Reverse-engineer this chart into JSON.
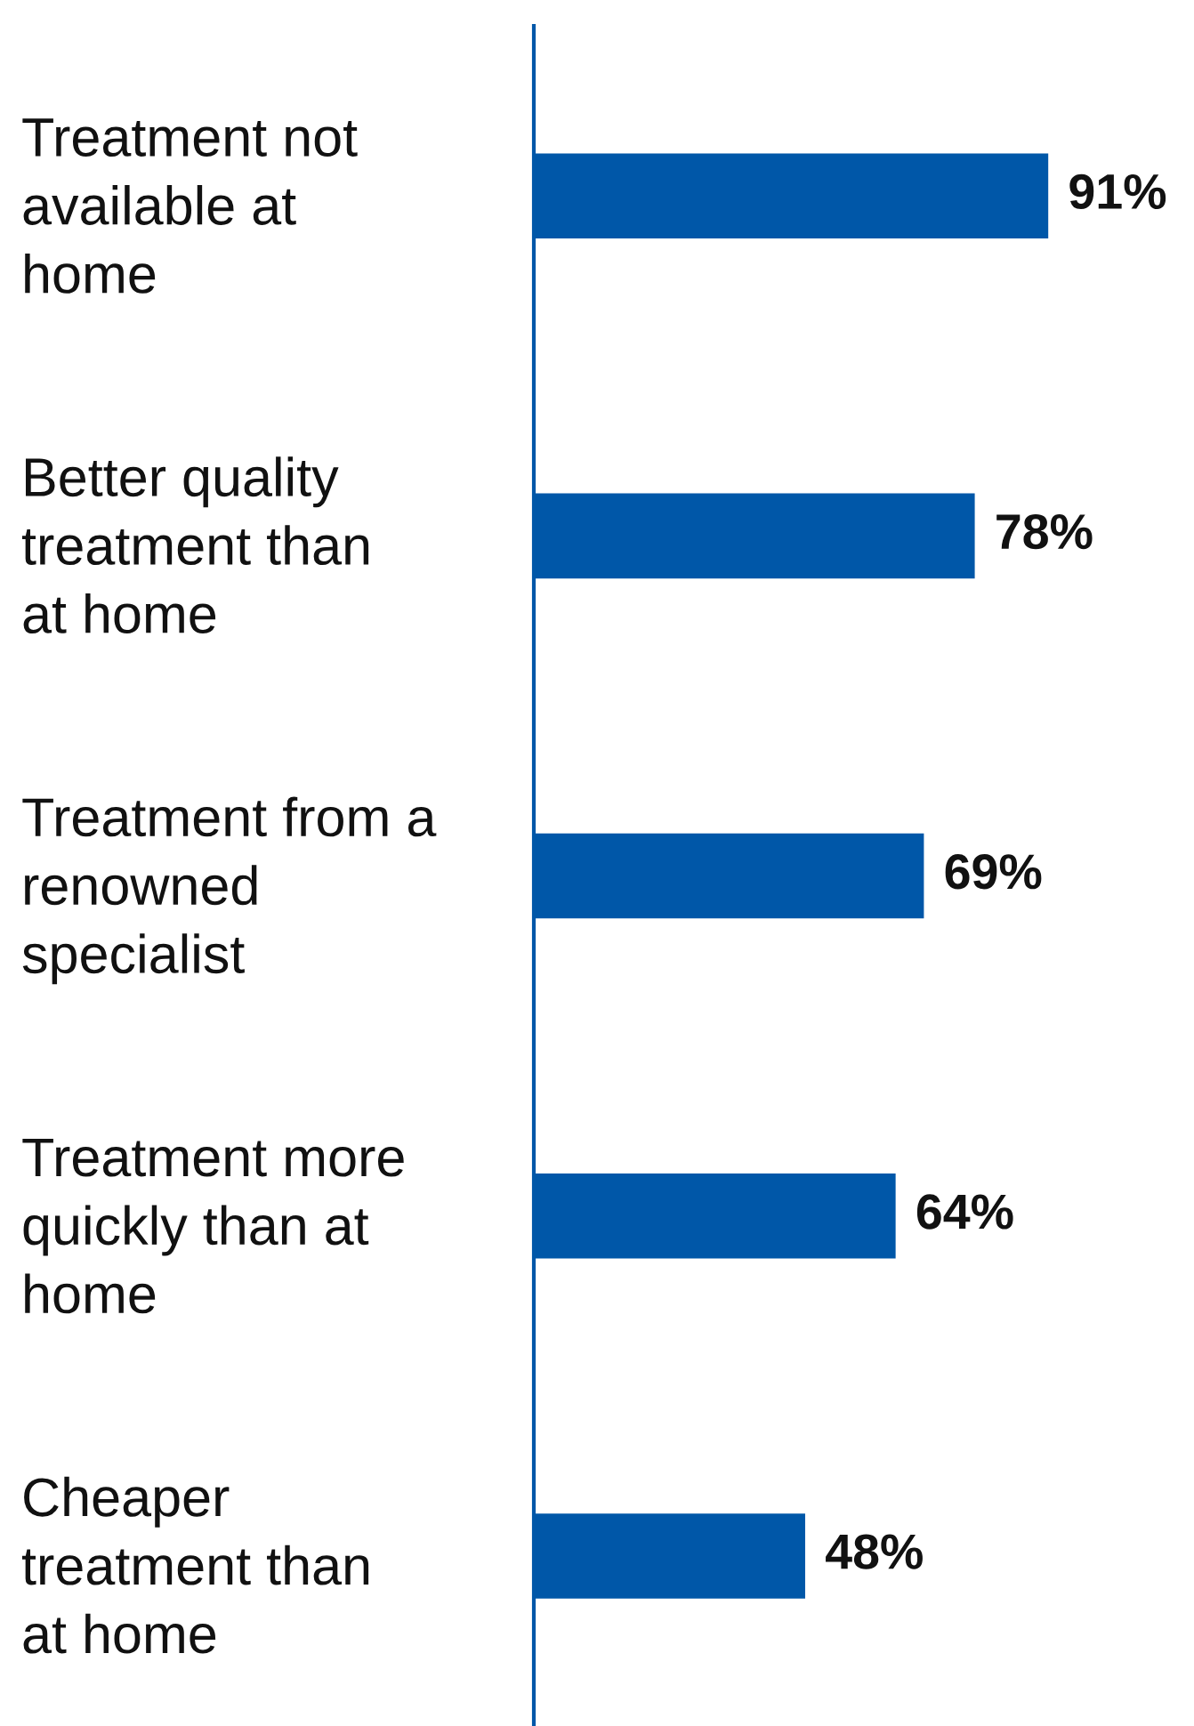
{
  "chart_data": {
    "type": "bar",
    "orientation": "horizontal",
    "categories": [
      "Treatment not available at home",
      "Better quality treatment than at home",
      "Treatment from a renowned specialist",
      "Treatment more quickly than at home",
      "Cheaper treatment than at home"
    ],
    "values": [
      91,
      78,
      69,
      64,
      48
    ],
    "value_labels": [
      "91%",
      "78%",
      "69%",
      "64%",
      "48%"
    ],
    "color": "#0057a8",
    "grid": false,
    "legend": false,
    "tick_labels": "y"
  }
}
